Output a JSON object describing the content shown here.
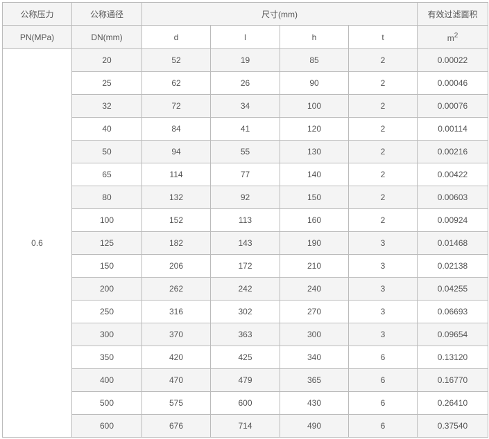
{
  "header": {
    "pn_line1": "公称压力",
    "pn_line2": "PN(MPa)",
    "dn_line1": "公称通径",
    "dn_line2": "DN(mm)",
    "size_group": "尺寸(mm)",
    "cols": [
      "d",
      "l",
      "h",
      "t"
    ],
    "area_line1": "有效过滤面积",
    "area_unit": "m",
    "area_exp": "2"
  },
  "pn_value": "0.6",
  "rows": [
    [
      "20",
      "52",
      "19",
      "85",
      "2",
      "0.00022"
    ],
    [
      "25",
      "62",
      "26",
      "90",
      "2",
      "0.00046"
    ],
    [
      "32",
      "72",
      "34",
      "100",
      "2",
      "0.00076"
    ],
    [
      "40",
      "84",
      "41",
      "120",
      "2",
      "0.00114"
    ],
    [
      "50",
      "94",
      "55",
      "130",
      "2",
      "0.00216"
    ],
    [
      "65",
      "114",
      "77",
      "140",
      "2",
      "0.00422"
    ],
    [
      "80",
      "132",
      "92",
      "150",
      "2",
      "0.00603"
    ],
    [
      "100",
      "152",
      "113",
      "160",
      "2",
      "0.00924"
    ],
    [
      "125",
      "182",
      "143",
      "190",
      "3",
      "0.01468"
    ],
    [
      "150",
      "206",
      "172",
      "210",
      "3",
      "0.02138"
    ],
    [
      "200",
      "262",
      "242",
      "240",
      "3",
      "0.04255"
    ],
    [
      "250",
      "316",
      "302",
      "270",
      "3",
      "0.06693"
    ],
    [
      "300",
      "370",
      "363",
      "300",
      "3",
      "0.09654"
    ],
    [
      "350",
      "420",
      "425",
      "340",
      "6",
      "0.13120"
    ],
    [
      "400",
      "470",
      "479",
      "365",
      "6",
      "0.16770"
    ],
    [
      "500",
      "575",
      "600",
      "430",
      "6",
      "0.26410"
    ],
    [
      "600",
      "676",
      "714",
      "490",
      "6",
      "0.37540"
    ]
  ]
}
